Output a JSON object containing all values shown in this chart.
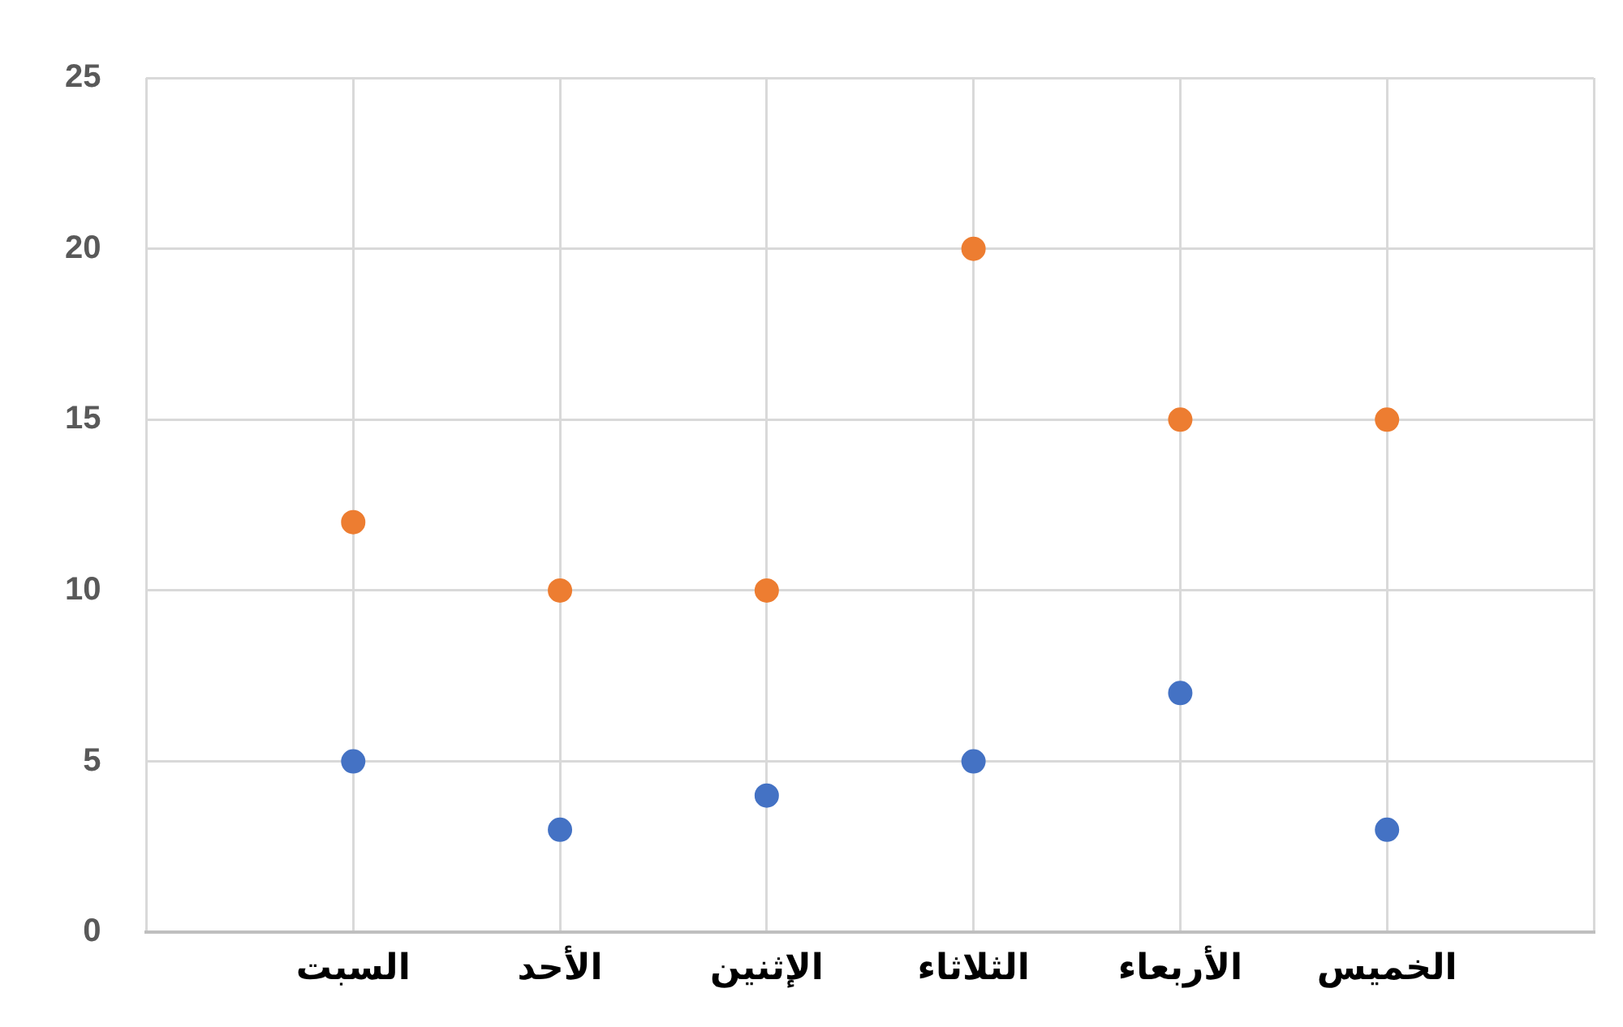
{
  "chart_data": {
    "type": "scatter",
    "categories": [
      null,
      "السبت",
      "الأحد",
      "الإثنين",
      "الثلاثاء",
      "الأربعاء",
      "الخميس",
      null
    ],
    "series": [
      {
        "color": "#ed7d31",
        "values": [
          null,
          12,
          10,
          10,
          20,
          15,
          15,
          null
        ]
      },
      {
        "color": "#4472c4",
        "values": [
          null,
          5,
          3,
          4,
          5,
          7,
          3,
          null
        ]
      }
    ],
    "ylim": [
      0,
      25
    ],
    "yticks": [
      0,
      5,
      10,
      15,
      20,
      25
    ],
    "grid": true,
    "legend": false,
    "marker": "circle"
  }
}
